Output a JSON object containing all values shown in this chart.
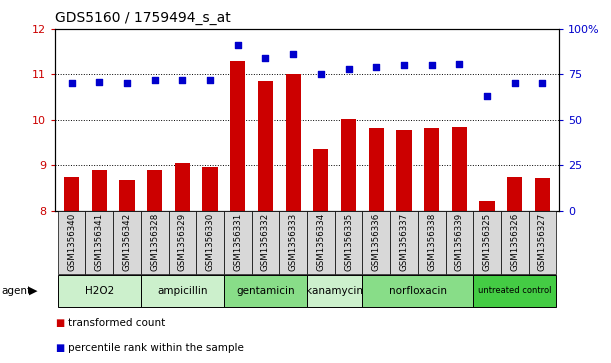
{
  "title": "GDS5160 / 1759494_s_at",
  "samples": [
    "GSM1356340",
    "GSM1356341",
    "GSM1356342",
    "GSM1356328",
    "GSM1356329",
    "GSM1356330",
    "GSM1356331",
    "GSM1356332",
    "GSM1356333",
    "GSM1356334",
    "GSM1356335",
    "GSM1356336",
    "GSM1356337",
    "GSM1356338",
    "GSM1356339",
    "GSM1356325",
    "GSM1356326",
    "GSM1356327"
  ],
  "bar_values": [
    8.75,
    8.9,
    8.68,
    8.9,
    9.05,
    8.95,
    11.3,
    10.85,
    11.0,
    9.35,
    10.02,
    9.82,
    9.78,
    9.82,
    9.85,
    8.2,
    8.75,
    8.72
  ],
  "percentile_values": [
    70,
    71,
    70,
    72,
    72,
    72,
    91,
    84,
    86,
    75,
    78,
    79,
    80,
    80,
    81,
    63,
    70,
    70
  ],
  "groups": [
    {
      "label": "H2O2",
      "start": 0,
      "end": 3,
      "color": "#ccf0cc"
    },
    {
      "label": "ampicillin",
      "start": 3,
      "end": 6,
      "color": "#ccf0cc"
    },
    {
      "label": "gentamicin",
      "start": 6,
      "end": 9,
      "color": "#88dd88"
    },
    {
      "label": "kanamycin",
      "start": 9,
      "end": 11,
      "color": "#ccf0cc"
    },
    {
      "label": "norfloxacin",
      "start": 11,
      "end": 15,
      "color": "#88dd88"
    },
    {
      "label": "untreated control",
      "start": 15,
      "end": 18,
      "color": "#44cc44"
    }
  ],
  "ylim_left": [
    8,
    12
  ],
  "ylim_right": [
    0,
    100
  ],
  "yticks_left": [
    8,
    9,
    10,
    11,
    12
  ],
  "yticks_right": [
    0,
    25,
    50,
    75,
    100
  ],
  "bar_color": "#cc0000",
  "dot_color": "#0000cc",
  "background_color": "#d8d8d8",
  "plot_bg": "#ffffff",
  "agent_label": "agent",
  "legend_bar": "transformed count",
  "legend_dot": "percentile rank within the sample",
  "grid_lines": [
    9,
    10,
    11
  ]
}
